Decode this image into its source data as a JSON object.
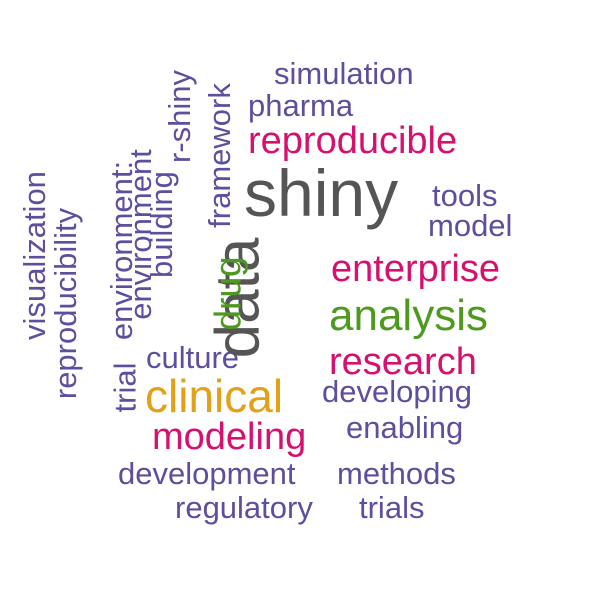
{
  "colors": {
    "purple": "#5b4f9e",
    "magenta": "#d6106e",
    "green": "#4e9a1f",
    "orange": "#e3a11a",
    "gray": "#555555"
  },
  "words": {
    "shiny": "shiny",
    "data": "data",
    "clinical": "clinical",
    "analysis": "analysis",
    "reproducible": "reproducible",
    "enterprise": "enterprise",
    "research": "research",
    "modeling": "modeling",
    "drug": "drug",
    "framework": "framework",
    "simulation": "simulation",
    "pharma": "pharma",
    "tools": "tools",
    "model": "model",
    "developing": "developing",
    "enabling": "enabling",
    "culture": "culture",
    "development": "development",
    "methods": "methods",
    "regulatory": "regulatory",
    "trials": "trials",
    "visualization": "visualization",
    "reproducibility": "reproducibility",
    "environment_colon": "environment:",
    "environment": "environment",
    "building": "building",
    "r_shiny": "r-shiny",
    "trial": "trial"
  }
}
